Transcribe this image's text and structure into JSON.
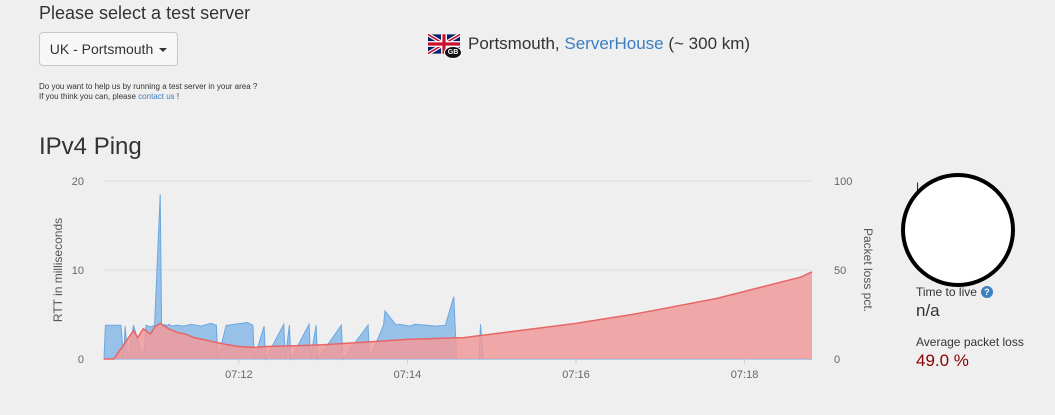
{
  "header": {
    "title": "Please select a test server",
    "server_select_value": "UK - Portsmouth"
  },
  "help": {
    "line1": "Do you want to help us by running a test server in your area ?",
    "line2_prefix": "If you think you can, please ",
    "contact_link": "contact us",
    "line2_suffix": " !"
  },
  "server": {
    "flag_badge": "GB",
    "city": "Portsmouth,",
    "provider": "ServerHouse",
    "distance": "(~ 300 km)"
  },
  "ping": {
    "title": "IPv4 Ping"
  },
  "stats": {
    "ttl_label": "Time to live",
    "ttl_value": "n/a",
    "loss_label": "Average packet loss",
    "loss_value": "49.0 %",
    "hidden_stub": "L"
  },
  "icons": {
    "flag": "uk-flag-icon",
    "help": "question-circle-icon"
  },
  "colors": {
    "rtt_fill": "#8dbbe8",
    "rtt_line": "#6aa7e0",
    "loss_fill": "#f09a9a",
    "loss_line": "#e86565",
    "loss_value": "#8b0000",
    "link": "#3a7fc1"
  },
  "chart_data": {
    "type": "area",
    "ylabel": "RTT in milliseconds",
    "y2label": "Packet loss pct.",
    "ylim": [
      0,
      20
    ],
    "y2lim": [
      0,
      100
    ],
    "yticks": [
      0,
      10,
      20
    ],
    "y2ticks": [
      0,
      50,
      100
    ],
    "xlim": [
      "07:10:24",
      "07:18:48"
    ],
    "xticks": [
      "07:12",
      "07:14",
      "07:16",
      "07:18"
    ],
    "grid": true,
    "series": [
      {
        "axis": "left",
        "x": [
          "07:10:24",
          "07:10:25",
          "07:10:36",
          "07:10:38",
          "07:10:39",
          "07:10:41",
          "07:10:45",
          "07:10:52",
          "07:10:54",
          "07:10:57",
          "07:11:00",
          "07:11:04",
          "07:11:05",
          "07:11:06",
          "07:11:07",
          "07:11:09",
          "07:11:10",
          "07:11:12",
          "07:11:16",
          "07:11:21",
          "07:11:26",
          "07:11:33",
          "07:11:40",
          "07:11:44",
          "07:11:45",
          "07:11:51",
          "07:11:52",
          "07:12:06",
          "07:12:10",
          "07:12:11",
          "07:12:18",
          "07:12:19",
          "07:12:32",
          "07:12:33",
          "07:12:36",
          "07:12:37",
          "07:12:50",
          "07:12:51",
          "07:12:55",
          "07:12:56",
          "07:13:13",
          "07:13:14",
          "07:13:32",
          "07:13:33",
          "07:13:43",
          "07:13:44",
          "07:13:52",
          "07:13:54",
          "07:14:02",
          "07:14:05",
          "07:14:14",
          "07:14:21",
          "07:14:27",
          "07:14:33",
          "07:14:35",
          "07:14:36",
          "07:14:38",
          "07:14:51",
          "07:14:52",
          "07:14:54",
          "07:14:55",
          "07:14:56",
          "07:18:48"
        ],
        "values": [
          0,
          3.8,
          3.8,
          0,
          3.7,
          0,
          3.8,
          0,
          3.8,
          3.6,
          3.8,
          18.5,
          3.8,
          3.6,
          3.9,
          3.7,
          3.9,
          3.7,
          3.8,
          3.7,
          3.9,
          3.7,
          4.0,
          3.8,
          0,
          3.8,
          3.8,
          4.1,
          3.8,
          0,
          3.7,
          0,
          3.9,
          0,
          3.8,
          0,
          3.9,
          0,
          3.8,
          0,
          3.8,
          0,
          3.8,
          0,
          3.8,
          5.4,
          3.8,
          3.9,
          3.7,
          3.9,
          3.8,
          3.7,
          3.8,
          7.0,
          0,
          0,
          0,
          0,
          3.9,
          0,
          0,
          0,
          0
        ]
      },
      {
        "axis": "right",
        "x": [
          "07:10:24",
          "07:10:31",
          "07:10:38",
          "07:10:45",
          "07:10:48",
          "07:10:52",
          "07:10:57",
          "07:11:00",
          "07:11:04",
          "07:11:10",
          "07:11:16",
          "07:11:22",
          "07:11:28",
          "07:11:34",
          "07:11:40",
          "07:11:46",
          "07:11:52",
          "07:12:00",
          "07:12:10",
          "07:12:20",
          "07:12:40",
          "07:13:00",
          "07:13:20",
          "07:13:40",
          "07:14:00",
          "07:14:20",
          "07:14:40",
          "07:15:00",
          "07:15:20",
          "07:15:40",
          "07:16:00",
          "07:16:20",
          "07:16:40",
          "07:17:00",
          "07:17:20",
          "07:17:40",
          "07:18:00",
          "07:18:20",
          "07:18:40",
          "07:18:48"
        ],
        "values": [
          0,
          0,
          8,
          16,
          12,
          17,
          14,
          18,
          20,
          17,
          15,
          14,
          12,
          11,
          10,
          9,
          8,
          7,
          6.5,
          7,
          7.5,
          8,
          9,
          10,
          11,
          11.5,
          12,
          14,
          16,
          18,
          20,
          22.5,
          25,
          28,
          31,
          34,
          38,
          42,
          46,
          49
        ]
      }
    ]
  }
}
